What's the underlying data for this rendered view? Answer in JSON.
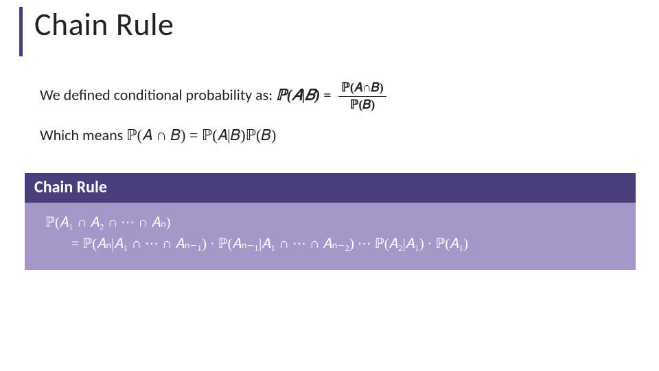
{
  "slide": {
    "title": "Chain Rule",
    "accent_color": "#4a3e7a",
    "intro": {
      "line1_prefix": "We defined conditional probability as: ",
      "cond_lhs": "ℙ(𝐴|𝐵)",
      "cond_eq": " = ",
      "cond_num": "ℙ(𝐴∩𝐵)",
      "cond_den": "ℙ(𝐵)",
      "line2_prefix": "Which means ",
      "joint": "ℙ(𝐴 ∩ 𝐵) = ℙ(𝐴|𝐵)ℙ(𝐵)"
    },
    "rule_box": {
      "header_bg": "#4b3e7c",
      "body_bg": "#a697c9",
      "text_color": "#ffffff",
      "title": "Chain Rule",
      "line1": "ℙ(𝐴₁ ∩ 𝐴₂ ∩ ⋯ ∩ 𝐴ₙ)",
      "line2": "= ℙ(𝐴ₙ|𝐴₁ ∩ ⋯ ∩ 𝐴ₙ₋₁) · ℙ(𝐴ₙ₋₁|𝐴₁ ∩ ⋯ ∩ 𝐴ₙ₋₂) ⋯ ℙ(𝐴₂|𝐴₁) · ℙ(𝐴₁)"
    }
  },
  "style": {
    "title_fontsize": 46,
    "body_fontsize": 22,
    "box_header_fontsize": 24,
    "box_body_fontsize": 20,
    "background": "#ffffff",
    "text_color": "#222222"
  }
}
